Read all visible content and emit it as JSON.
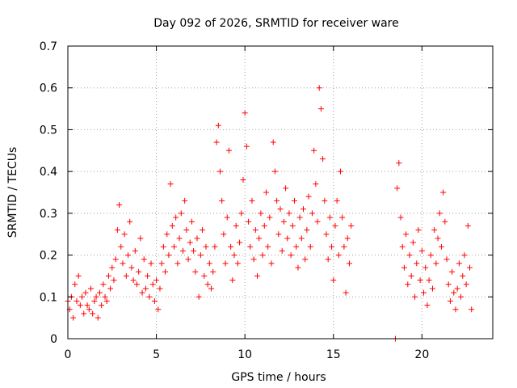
{
  "chart_data": {
    "type": "scatter",
    "title": "Day 092 of 2026, SRMTID for receiver ware",
    "xlabel": "GPS time / hours",
    "ylabel": "SRMTID / TECUs",
    "xlim": [
      0,
      24
    ],
    "ylim": [
      0,
      0.7
    ],
    "xticks": [
      0,
      5,
      10,
      15,
      20
    ],
    "yticks": [
      0,
      0.1,
      0.2,
      0.3,
      0.4,
      0.5,
      0.6,
      0.7
    ],
    "xtick_labels": [
      "0",
      "5",
      "10",
      "15",
      "20"
    ],
    "ytick_labels": [
      "0",
      "0.1",
      "0.2",
      "0.3",
      "0.4",
      "0.5",
      "0.6",
      "0.7"
    ],
    "grid": true,
    "marker": "+",
    "color": "#ff0000",
    "series": [
      {
        "name": "SRMTID",
        "points": [
          [
            0.0,
            0.09
          ],
          [
            0.1,
            0.07
          ],
          [
            0.2,
            0.1
          ],
          [
            0.3,
            0.05
          ],
          [
            0.4,
            0.13
          ],
          [
            0.5,
            0.09
          ],
          [
            0.6,
            0.15
          ],
          [
            0.7,
            0.08
          ],
          [
            0.8,
            0.1
          ],
          [
            0.9,
            0.06
          ],
          [
            1.0,
            0.11
          ],
          [
            1.1,
            0.08
          ],
          [
            1.2,
            0.07
          ],
          [
            1.3,
            0.12
          ],
          [
            1.4,
            0.06
          ],
          [
            1.5,
            0.09
          ],
          [
            1.6,
            0.1
          ],
          [
            1.7,
            0.05
          ],
          [
            1.8,
            0.11
          ],
          [
            1.9,
            0.08
          ],
          [
            2.0,
            0.13
          ],
          [
            2.1,
            0.1
          ],
          [
            2.2,
            0.09
          ],
          [
            2.3,
            0.15
          ],
          [
            2.4,
            0.12
          ],
          [
            2.5,
            0.17
          ],
          [
            2.6,
            0.14
          ],
          [
            2.7,
            0.19
          ],
          [
            2.8,
            0.26
          ],
          [
            2.9,
            0.32
          ],
          [
            3.0,
            0.22
          ],
          [
            3.1,
            0.18
          ],
          [
            3.2,
            0.25
          ],
          [
            3.3,
            0.15
          ],
          [
            3.4,
            0.2
          ],
          [
            3.5,
            0.28
          ],
          [
            3.6,
            0.17
          ],
          [
            3.7,
            0.14
          ],
          [
            3.8,
            0.21
          ],
          [
            3.9,
            0.13
          ],
          [
            4.0,
            0.16
          ],
          [
            4.1,
            0.24
          ],
          [
            4.2,
            0.11
          ],
          [
            4.3,
            0.19
          ],
          [
            4.4,
            0.12
          ],
          [
            4.5,
            0.15
          ],
          [
            4.6,
            0.1
          ],
          [
            4.7,
            0.18
          ],
          [
            4.8,
            0.13
          ],
          [
            4.9,
            0.09
          ],
          [
            5.0,
            0.14
          ],
          [
            5.1,
            0.07
          ],
          [
            5.2,
            0.12
          ],
          [
            5.3,
            0.18
          ],
          [
            5.4,
            0.22
          ],
          [
            5.5,
            0.16
          ],
          [
            5.6,
            0.25
          ],
          [
            5.7,
            0.2
          ],
          [
            5.8,
            0.37
          ],
          [
            5.9,
            0.27
          ],
          [
            6.0,
            0.22
          ],
          [
            6.1,
            0.29
          ],
          [
            6.2,
            0.18
          ],
          [
            6.3,
            0.24
          ],
          [
            6.4,
            0.3
          ],
          [
            6.5,
            0.21
          ],
          [
            6.6,
            0.33
          ],
          [
            6.7,
            0.26
          ],
          [
            6.8,
            0.19
          ],
          [
            6.9,
            0.23
          ],
          [
            7.0,
            0.28
          ],
          [
            7.1,
            0.21
          ],
          [
            7.2,
            0.16
          ],
          [
            7.3,
            0.24
          ],
          [
            7.4,
            0.1
          ],
          [
            7.5,
            0.2
          ],
          [
            7.6,
            0.26
          ],
          [
            7.7,
            0.15
          ],
          [
            7.8,
            0.22
          ],
          [
            7.9,
            0.13
          ],
          [
            8.0,
            0.18
          ],
          [
            8.1,
            0.12
          ],
          [
            8.2,
            0.16
          ],
          [
            8.3,
            0.22
          ],
          [
            8.4,
            0.47
          ],
          [
            8.5,
            0.51
          ],
          [
            8.6,
            0.4
          ],
          [
            8.7,
            0.33
          ],
          [
            8.8,
            0.25
          ],
          [
            8.9,
            0.18
          ],
          [
            9.0,
            0.29
          ],
          [
            9.1,
            0.45
          ],
          [
            9.2,
            0.22
          ],
          [
            9.3,
            0.14
          ],
          [
            9.4,
            0.2
          ],
          [
            9.5,
            0.27
          ],
          [
            9.6,
            0.18
          ],
          [
            9.7,
            0.23
          ],
          [
            9.8,
            0.3
          ],
          [
            9.9,
            0.38
          ],
          [
            10.0,
            0.54
          ],
          [
            10.1,
            0.46
          ],
          [
            10.2,
            0.28
          ],
          [
            10.3,
            0.22
          ],
          [
            10.4,
            0.33
          ],
          [
            10.5,
            0.19
          ],
          [
            10.6,
            0.26
          ],
          [
            10.7,
            0.15
          ],
          [
            10.8,
            0.24
          ],
          [
            10.9,
            0.3
          ],
          [
            11.0,
            0.2
          ],
          [
            11.1,
            0.27
          ],
          [
            11.2,
            0.35
          ],
          [
            11.3,
            0.22
          ],
          [
            11.4,
            0.29
          ],
          [
            11.5,
            0.18
          ],
          [
            11.6,
            0.47
          ],
          [
            11.7,
            0.4
          ],
          [
            11.8,
            0.33
          ],
          [
            11.9,
            0.25
          ],
          [
            12.0,
            0.31
          ],
          [
            12.1,
            0.21
          ],
          [
            12.2,
            0.28
          ],
          [
            12.3,
            0.36
          ],
          [
            12.4,
            0.24
          ],
          [
            12.5,
            0.3
          ],
          [
            12.6,
            0.2
          ],
          [
            12.7,
            0.27
          ],
          [
            12.8,
            0.33
          ],
          [
            12.9,
            0.22
          ],
          [
            13.0,
            0.17
          ],
          [
            13.1,
            0.29
          ],
          [
            13.2,
            0.24
          ],
          [
            13.3,
            0.31
          ],
          [
            13.4,
            0.19
          ],
          [
            13.5,
            0.26
          ],
          [
            13.6,
            0.34
          ],
          [
            13.7,
            0.22
          ],
          [
            13.8,
            0.3
          ],
          [
            13.9,
            0.45
          ],
          [
            14.0,
            0.37
          ],
          [
            14.1,
            0.28
          ],
          [
            14.2,
            0.6
          ],
          [
            14.3,
            0.55
          ],
          [
            14.4,
            0.43
          ],
          [
            14.5,
            0.33
          ],
          [
            14.6,
            0.25
          ],
          [
            14.7,
            0.19
          ],
          [
            14.8,
            0.29
          ],
          [
            14.9,
            0.22
          ],
          [
            15.0,
            0.14
          ],
          [
            15.1,
            0.27
          ],
          [
            15.2,
            0.33
          ],
          [
            15.3,
            0.2
          ],
          [
            15.4,
            0.4
          ],
          [
            15.5,
            0.29
          ],
          [
            15.6,
            0.22
          ],
          [
            15.7,
            0.11
          ],
          [
            15.8,
            0.24
          ],
          [
            15.9,
            0.18
          ],
          [
            16.0,
            0.27
          ],
          [
            18.5,
            0.0
          ],
          [
            18.6,
            0.36
          ],
          [
            18.7,
            0.42
          ],
          [
            18.8,
            0.29
          ],
          [
            18.9,
            0.22
          ],
          [
            19.0,
            0.17
          ],
          [
            19.1,
            0.25
          ],
          [
            19.2,
            0.13
          ],
          [
            19.3,
            0.2
          ],
          [
            19.4,
            0.15
          ],
          [
            19.5,
            0.23
          ],
          [
            19.6,
            0.1
          ],
          [
            19.7,
            0.18
          ],
          [
            19.8,
            0.26
          ],
          [
            19.9,
            0.14
          ],
          [
            20.0,
            0.21
          ],
          [
            20.1,
            0.11
          ],
          [
            20.2,
            0.17
          ],
          [
            20.3,
            0.08
          ],
          [
            20.4,
            0.14
          ],
          [
            20.5,
            0.2
          ],
          [
            20.6,
            0.12
          ],
          [
            20.7,
            0.26
          ],
          [
            20.8,
            0.18
          ],
          [
            20.9,
            0.24
          ],
          [
            21.0,
            0.3
          ],
          [
            21.1,
            0.22
          ],
          [
            21.2,
            0.35
          ],
          [
            21.3,
            0.28
          ],
          [
            21.4,
            0.19
          ],
          [
            21.5,
            0.13
          ],
          [
            21.6,
            0.09
          ],
          [
            21.7,
            0.16
          ],
          [
            21.8,
            0.11
          ],
          [
            21.9,
            0.07
          ],
          [
            22.0,
            0.12
          ],
          [
            22.1,
            0.18
          ],
          [
            22.2,
            0.1
          ],
          [
            22.3,
            0.15
          ],
          [
            22.4,
            0.2
          ],
          [
            22.5,
            0.13
          ],
          [
            22.6,
            0.27
          ],
          [
            22.7,
            0.17
          ],
          [
            22.8,
            0.07
          ]
        ]
      }
    ]
  }
}
